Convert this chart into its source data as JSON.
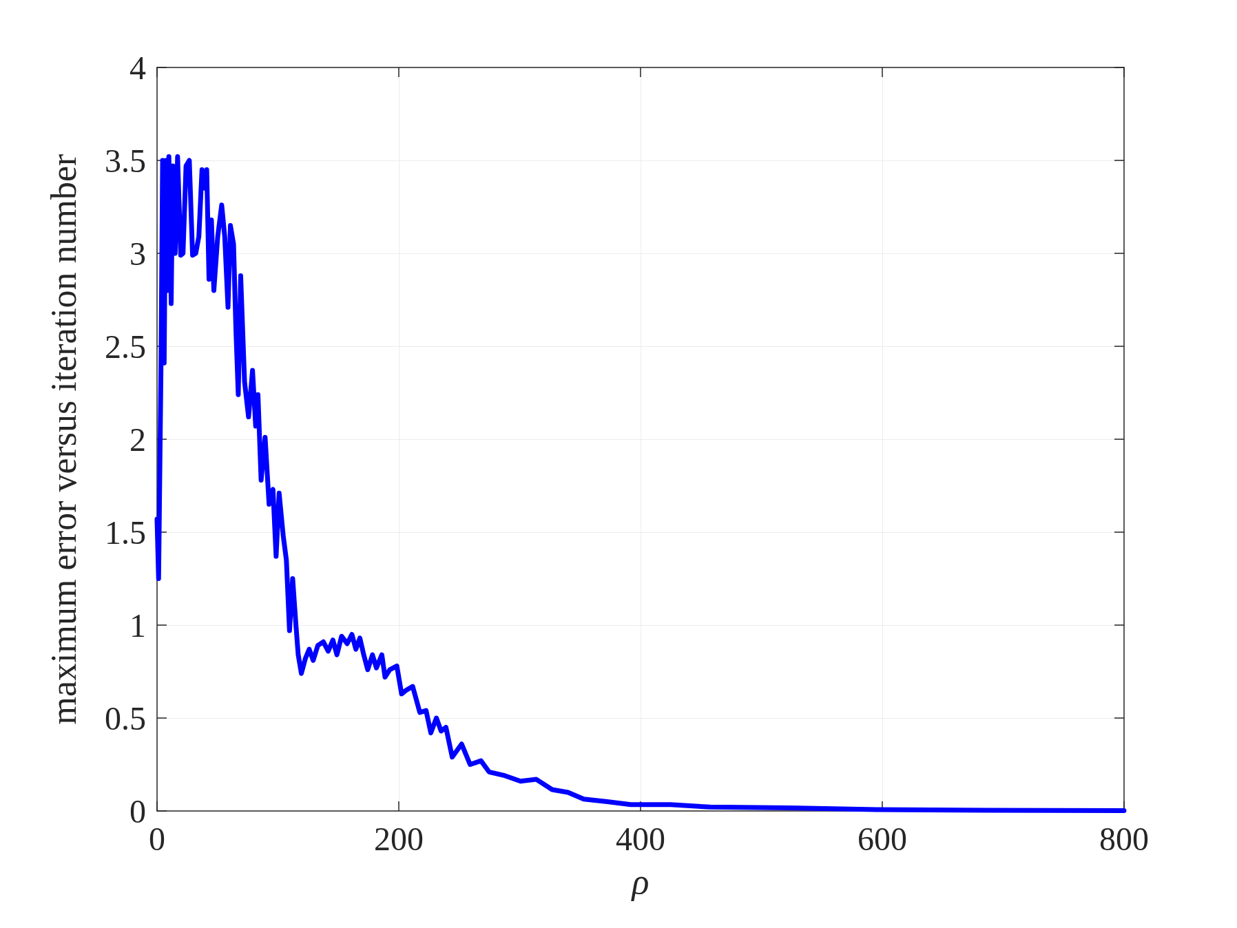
{
  "chart_data": {
    "type": "line",
    "xlabel": "ρ",
    "ylabel": "maximum error versus iteration number",
    "xlim": [
      0,
      800
    ],
    "xticks": [
      0,
      200,
      400,
      600,
      800
    ],
    "ylim": [
      0,
      4
    ],
    "yticks": [
      0,
      0.5,
      1,
      1.5,
      2,
      2.5,
      3,
      3.5,
      4
    ],
    "grid": true,
    "marker": "none",
    "line_style": "solid",
    "series": [
      {
        "color": "#0000ff",
        "x": [
          0,
          1.3,
          3.3,
          4.6,
          5.9,
          7.2,
          8.5,
          9.8,
          11.7,
          13,
          15,
          17,
          19.6,
          21.5,
          24,
          26.7,
          29.4,
          32,
          34.6,
          37.2,
          39.8,
          41.1,
          43,
          45,
          47,
          50.2,
          53.5,
          56,
          58.7,
          60.7,
          63.3,
          65.3,
          67.2,
          69.2,
          72.4,
          75.7,
          79,
          81.6,
          83.5,
          86.1,
          89.4,
          92.7,
          95.9,
          98.5,
          101,
          104.4,
          107,
          109.6,
          112.2,
          114.8,
          116.8,
          119.4,
          122.7,
          125.9,
          129.2,
          133,
          137.6,
          141.6,
          145.5,
          148.8,
          152.7,
          157.3,
          161.2,
          164.5,
          167.8,
          171,
          174.3,
          178.2,
          181.5,
          186,
          188.6,
          192.5,
          198.4,
          202.3,
          206.2,
          211.5,
          217.4,
          222.6,
          226.5,
          231.1,
          235,
          239,
          244.2,
          252,
          259,
          268,
          274.7,
          287.7,
          300.7,
          313.8,
          326.9,
          340,
          353,
          372.5,
          392,
          424.8,
          457.4,
          522.6,
          588,
          685.8,
          800
        ],
        "values": [
          1.57,
          1.25,
          2.41,
          3.5,
          2.41,
          3.5,
          2.8,
          3.52,
          2.73,
          3.47,
          3.0,
          3.52,
          2.99,
          3.0,
          3.47,
          3.5,
          2.99,
          3.0,
          3.09,
          3.45,
          3.35,
          3.45,
          2.86,
          3.18,
          2.8,
          3.09,
          3.26,
          3.09,
          2.71,
          3.15,
          3.05,
          2.58,
          2.24,
          2.88,
          2.31,
          2.12,
          2.37,
          2.07,
          2.24,
          1.78,
          2.01,
          1.65,
          1.73,
          1.37,
          1.71,
          1.48,
          1.35,
          0.97,
          1.25,
          1.01,
          0.84,
          0.74,
          0.82,
          0.87,
          0.81,
          0.89,
          0.91,
          0.86,
          0.92,
          0.84,
          0.94,
          0.9,
          0.95,
          0.87,
          0.93,
          0.84,
          0.76,
          0.84,
          0.77,
          0.84,
          0.72,
          0.76,
          0.78,
          0.63,
          0.65,
          0.67,
          0.53,
          0.54,
          0.42,
          0.5,
          0.43,
          0.45,
          0.29,
          0.36,
          0.25,
          0.27,
          0.21,
          0.19,
          0.16,
          0.17,
          0.115,
          0.1,
          0.064,
          0.05,
          0.034,
          0.034,
          0.021,
          0.017,
          0.008,
          0.004,
          0.002
        ]
      }
    ]
  }
}
